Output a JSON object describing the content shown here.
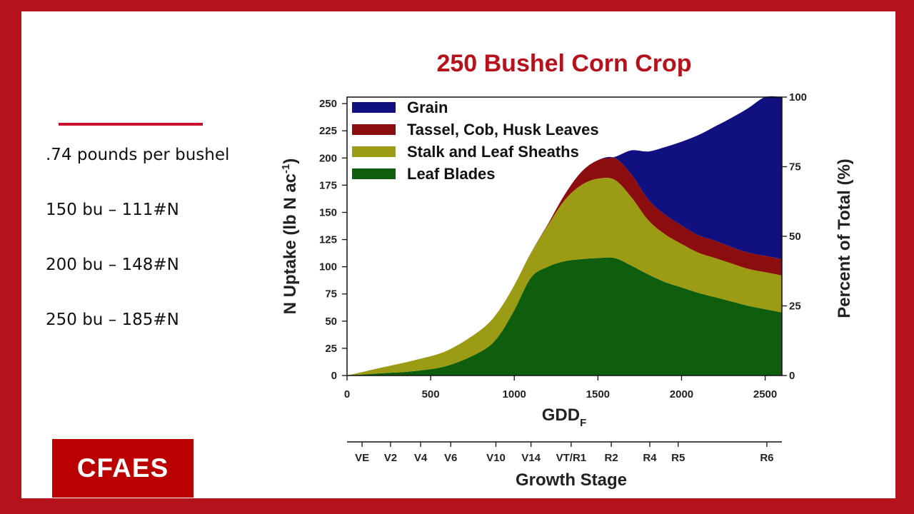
{
  "slide": {
    "title": "250 Bushel Corn Crop",
    "facts": [
      ".74 pounds per bushel",
      "150 bu – 111#N",
      "200 bu – 148#N",
      "250 bu – 185#N"
    ],
    "logo_text": "CFAES",
    "colors": {
      "brand_red": "#b5121b",
      "logo_red": "#bb0000"
    }
  },
  "chart_data": {
    "type": "area",
    "stacked": true,
    "title": "",
    "xlabel": "GDDF",
    "xlabel_main": "GDD",
    "xlabel_sub": "F",
    "ylabel": "N Uptake (lb N ac-1)",
    "ylabel_main": "N Uptake (lb N ac",
    "ylabel_sup": "-1",
    "ylabel_close": ")",
    "y2label": "Percent of Total (%)",
    "xlim": [
      0,
      2600
    ],
    "ylim": [
      0,
      256
    ],
    "y2lim": [
      0,
      100
    ],
    "xticks": [
      0,
      500,
      1000,
      1500,
      2000,
      2500
    ],
    "yticks": [
      0,
      25,
      50,
      75,
      100,
      125,
      150,
      175,
      200,
      225,
      250
    ],
    "y2ticks": [
      0,
      25,
      50,
      75,
      100
    ],
    "legend_position": "top-left",
    "grid": false,
    "x": [
      0,
      200,
      400,
      600,
      800,
      900,
      1000,
      1100,
      1200,
      1300,
      1400,
      1500,
      1600,
      1700,
      1800,
      1900,
      2000,
      2100,
      2200,
      2300,
      2400,
      2500,
      2600
    ],
    "series": [
      {
        "name": "Leaf Blades",
        "color": "#0e5e0e",
        "values": [
          0,
          2,
          4,
          9,
          22,
          35,
          60,
          90,
          100,
          105,
          107,
          108,
          108,
          101,
          93,
          86,
          81,
          76,
          72,
          68,
          64,
          61,
          58
        ]
      },
      {
        "name": "Stalk and Leaf Sheaths",
        "color": "#9c9c14",
        "values": [
          0,
          5,
          10,
          14,
          20,
          23,
          23,
          23,
          38,
          56,
          68,
          73,
          72,
          63,
          50,
          44,
          40,
          37,
          36,
          35,
          34,
          34,
          34
        ]
      },
      {
        "name": "Tassel, Cob, Husk Leaves",
        "color": "#8b0d0d",
        "values": [
          0,
          0,
          0,
          0,
          0,
          0,
          0,
          0,
          1,
          5,
          12,
          17,
          20,
          21,
          19,
          18,
          17,
          16,
          16,
          15,
          15,
          15,
          15
        ]
      },
      {
        "name": "Grain",
        "color": "#101080",
        "values": [
          0,
          0,
          0,
          0,
          0,
          0,
          0,
          0,
          0,
          0,
          0,
          0,
          1,
          22,
          44,
          62,
          77,
          92,
          105,
          119,
          133,
          146,
          149
        ]
      }
    ],
    "growth_stage_axis": {
      "label": "Growth Stage",
      "stages": [
        {
          "name": "VE",
          "gdd": 90
        },
        {
          "name": "V2",
          "gdd": 260
        },
        {
          "name": "V4",
          "gdd": 440
        },
        {
          "name": "V6",
          "gdd": 620
        },
        {
          "name": "V10",
          "gdd": 890
        },
        {
          "name": "V14",
          "gdd": 1100
        },
        {
          "name": "VT/R1",
          "gdd": 1340
        },
        {
          "name": "R2",
          "gdd": 1580
        },
        {
          "name": "R4",
          "gdd": 1810
        },
        {
          "name": "R5",
          "gdd": 1980
        },
        {
          "name": "R6",
          "gdd": 2510
        }
      ]
    }
  }
}
